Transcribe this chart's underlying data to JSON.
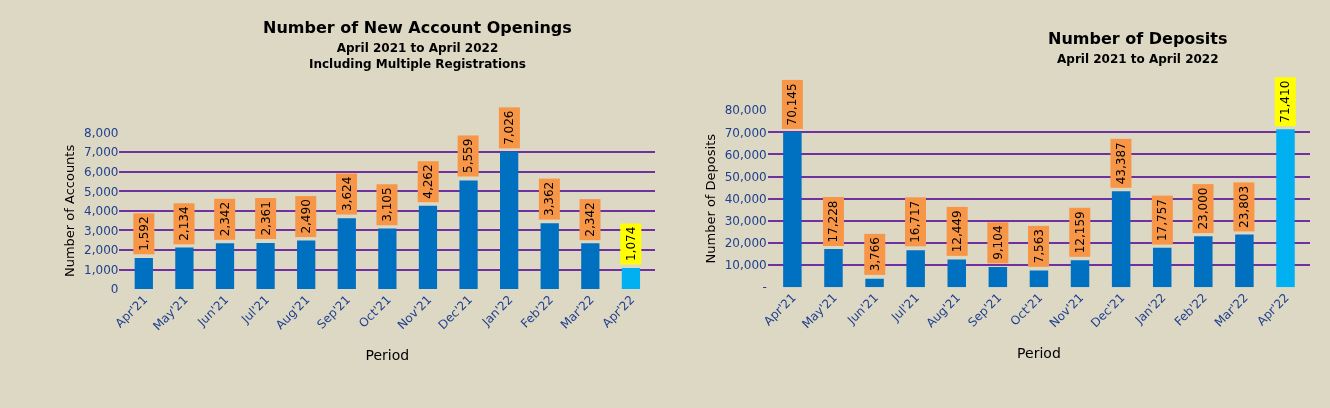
{
  "chart_data": [
    {
      "type": "bar",
      "title": "Number of New Account Openings",
      "subtitle": "April 2021 to April 2022\nIncluding Multiple Registrations",
      "xlabel": "Period",
      "ylabel": "Number of Accounts",
      "categories": [
        "Apr'21",
        "May'21",
        "Jun'21",
        "Jul'21",
        "Aug'21",
        "Sep'21",
        "Oct'21",
        "Nov'21",
        "Dec'21",
        "Jan'22",
        "Feb'22",
        "Mar'22",
        "Apr'22"
      ],
      "values": [
        1592,
        2134,
        2342,
        2361,
        2490,
        3624,
        3105,
        4262,
        5559,
        7026,
        3362,
        2342,
        1074
      ],
      "value_labels": [
        "1,592",
        "2,134",
        "2,342",
        "2,361",
        "2,490",
        "3,624",
        "3,105",
        "4,262",
        "5,559",
        "7,026",
        "3,362",
        "2,342",
        "1,074"
      ],
      "colors": [
        "#0070c0",
        "#0070c0",
        "#0070c0",
        "#0070c0",
        "#0070c0",
        "#0070c0",
        "#0070c0",
        "#0070c0",
        "#0070c0",
        "#0070c0",
        "#0070c0",
        "#0070c0",
        "#00b0f0"
      ],
      "ylim": [
        0,
        8000
      ],
      "yticks": [
        0,
        {
          "value": 1000,
          "label": "1,000"
        },
        {
          "value": 2000,
          "label": "2,000"
        },
        {
          "value": 3000,
          "label": "3,000"
        },
        {
          "value": 4000,
          "label": "4,000"
        },
        {
          "value": 5000,
          "label": "5,000"
        },
        {
          "value": 6000,
          "label": "6,000"
        },
        {
          "value": 7000,
          "label": "7,000"
        },
        {
          "value": 8000,
          "label": "8,000"
        }
      ],
      "grid": "y"
    },
    {
      "type": "bar",
      "title": "Number of Deposits",
      "subtitle": "April 2021 to April 2022",
      "xlabel": "Period",
      "ylabel": "Number of Deposits",
      "categories": [
        "Apr'21",
        "May'21",
        "Jun'21",
        "Jul'21",
        "Aug'21",
        "Sep'21",
        "Oct'21",
        "Nov'21",
        "Dec'21",
        "Jan'22",
        "Feb'22",
        "Mar'22",
        "Apr'22"
      ],
      "values": [
        70145,
        17228,
        3766,
        16717,
        12449,
        9104,
        7563,
        12159,
        43387,
        17757,
        23000,
        23803,
        71410
      ],
      "value_labels": [
        "70,145",
        "17,228",
        "3,766",
        "16,717",
        "12,449",
        "9,104",
        "7,563",
        "12,159",
        "43,387",
        "17,757",
        "23,000",
        "23,803",
        "71,410"
      ],
      "colors": [
        "#0070c0",
        "#0070c0",
        "#0070c0",
        "#0070c0",
        "#0070c0",
        "#0070c0",
        "#0070c0",
        "#0070c0",
        "#0070c0",
        "#0070c0",
        "#0070c0",
        "#0070c0",
        "#00b0f0"
      ],
      "ylim": [
        0,
        80000
      ],
      "yticks": [
        {
          "value": 0,
          "label": "-"
        },
        {
          "value": 10000,
          "label": "10,000"
        },
        {
          "value": 20000,
          "label": "20,000"
        },
        {
          "value": 30000,
          "label": "30,000"
        },
        {
          "value": 40000,
          "label": "40,000"
        },
        {
          "value": 50000,
          "label": "50,000"
        },
        {
          "value": 60000,
          "label": "60,000"
        },
        {
          "value": 70000,
          "label": "70,000"
        },
        {
          "value": 80000,
          "label": "80,000"
        }
      ],
      "grid": "y"
    }
  ]
}
